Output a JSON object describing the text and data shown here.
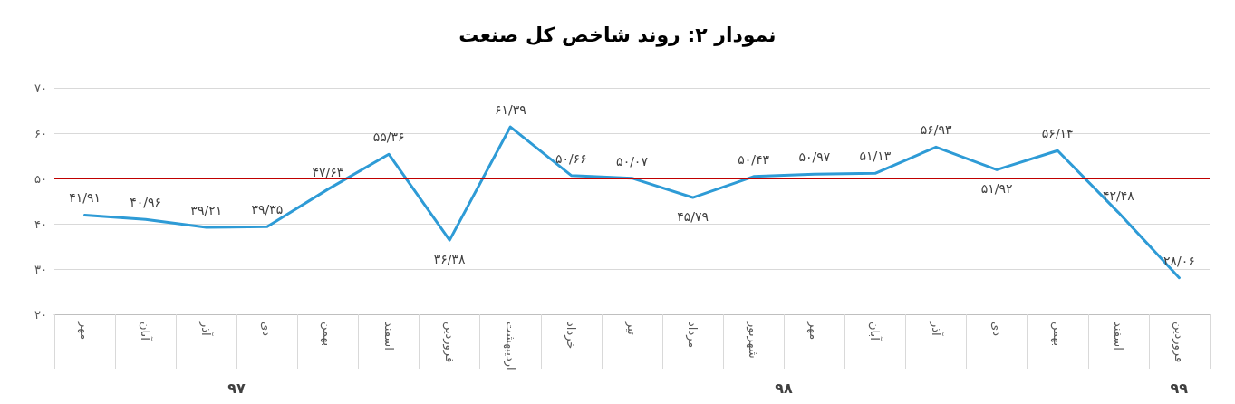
{
  "chart_data": {
    "type": "line",
    "title": "نمودار ۲: روند شاخص کل صنعت",
    "categories": [
      "مهر",
      "آبان",
      "آذر",
      "دی",
      "بهمن",
      "اسفند",
      "فروردین",
      "اردیبهشت",
      "خرداد",
      "تیر",
      "مرداد",
      "شهریور",
      "مهر",
      "آبان",
      "آذر",
      "دی",
      "بهمن",
      "اسفند",
      "فروردین"
    ],
    "series": [
      {
        "color": "#2e9bd6",
        "values": [
          41.91,
          40.96,
          39.21,
          39.35,
          47.63,
          55.36,
          36.38,
          61.39,
          50.66,
          50.07,
          45.79,
          50.43,
          50.97,
          51.13,
          56.93,
          51.92,
          56.14,
          42.48,
          28.06
        ],
        "value_labels": [
          "۴۱/۹۱",
          "۴۰/۹۶",
          "۳۹/۲۱",
          "۳۹/۳۵",
          "۴۷/۶۳",
          "۵۵/۳۶",
          "۳۶/۳۸",
          "۶۱/۳۹",
          "۵۰/۶۶",
          "۵۰/۰۷",
          "۴۵/۷۹",
          "۵۰/۴۳",
          "۵۰/۹۷",
          "۵۱/۱۳",
          "۵۶/۹۳",
          "۵۱/۹۲",
          "۵۶/۱۴",
          "۴۲/۴۸",
          "۲۸/۰۶"
        ]
      }
    ],
    "ylim": [
      20,
      70
    ],
    "yticks": [
      {
        "value": 20,
        "label": "۲۰"
      },
      {
        "value": 30,
        "label": "۳۰"
      },
      {
        "value": 40,
        "label": "۴۰"
      },
      {
        "value": 50,
        "label": "۵۰"
      },
      {
        "value": 60,
        "label": "۶۰"
      },
      {
        "value": 70,
        "label": "۷۰"
      }
    ],
    "ref_lines": [
      {
        "axis": "y",
        "value": 50,
        "color": "#c00000"
      }
    ],
    "annotations": [
      "۹۷",
      "۹۸",
      "۹۹"
    ],
    "grid": "y",
    "marker": "none",
    "line_style": "solid"
  }
}
